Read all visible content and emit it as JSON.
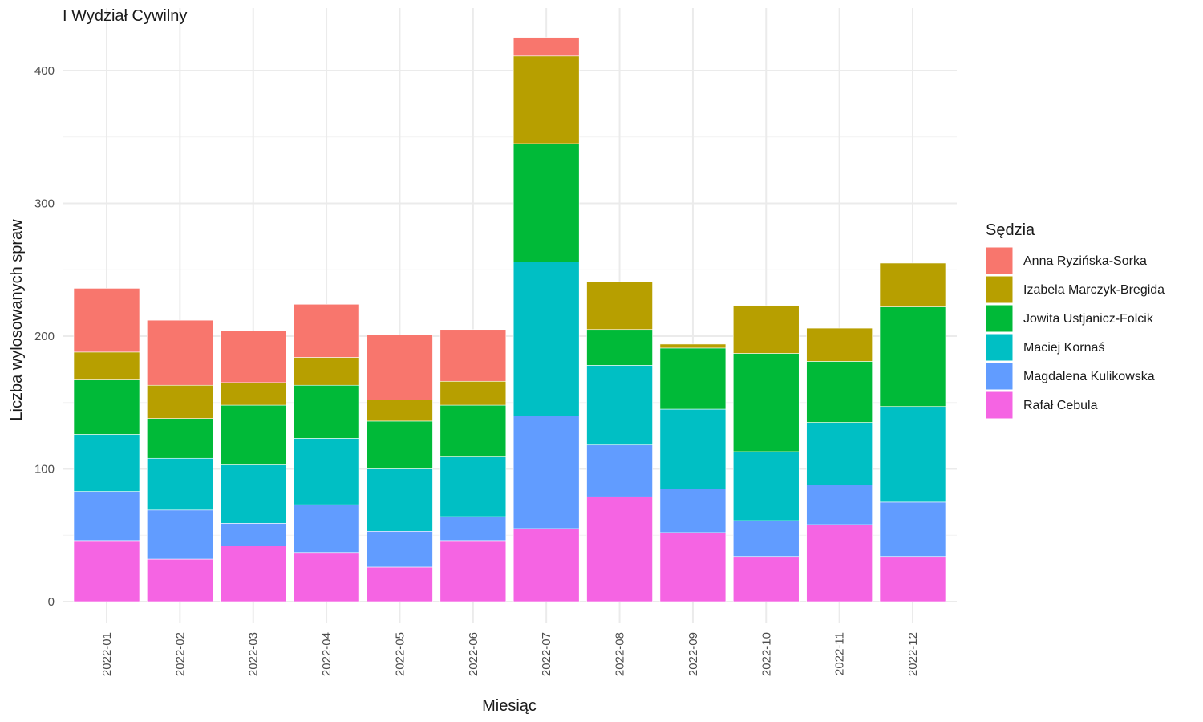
{
  "chart_data": {
    "type": "bar",
    "stacked": true,
    "title": "I Wydział Cywilny",
    "xlabel": "Miesiąc",
    "ylabel": "Liczba wylosowanych spraw",
    "ylim": [
      0,
      425
    ],
    "yticks": [
      0,
      100,
      200,
      300,
      400
    ],
    "grid": true,
    "legend_title": "Sędzia",
    "legend_position": "right",
    "categories": [
      "2022-01",
      "2022-02",
      "2022-03",
      "2022-04",
      "2022-05",
      "2022-06",
      "2022-07",
      "2022-08",
      "2022-09",
      "2022-10",
      "2022-11",
      "2022-12"
    ],
    "series": [
      {
        "name": "Anna Ryzińska-Sorka",
        "color": "#F8766D",
        "values": [
          48,
          49,
          39,
          40,
          49,
          39,
          14,
          0,
          0,
          0,
          0,
          0
        ]
      },
      {
        "name": "Izabela Marczyk-Bregida",
        "color": "#B79F00",
        "values": [
          21,
          25,
          17,
          21,
          16,
          18,
          66,
          36,
          3,
          36,
          25,
          33
        ]
      },
      {
        "name": "Jowita Ustjanicz-Folcik",
        "color": "#00BA38",
        "values": [
          41,
          30,
          45,
          40,
          36,
          39,
          89,
          27,
          46,
          74,
          46,
          75
        ]
      },
      {
        "name": "Maciej Kornaś",
        "color": "#00BFC4",
        "values": [
          43,
          39,
          44,
          50,
          47,
          45,
          116,
          60,
          60,
          52,
          47,
          72
        ]
      },
      {
        "name": "Magdalena Kulikowska",
        "color": "#619CFF",
        "values": [
          37,
          37,
          17,
          36,
          27,
          18,
          85,
          39,
          33,
          27,
          30,
          41
        ]
      },
      {
        "name": "Rafał Cebula",
        "color": "#F564E3",
        "values": [
          46,
          32,
          42,
          37,
          26,
          46,
          55,
          79,
          52,
          34,
          58,
          34
        ]
      }
    ]
  }
}
